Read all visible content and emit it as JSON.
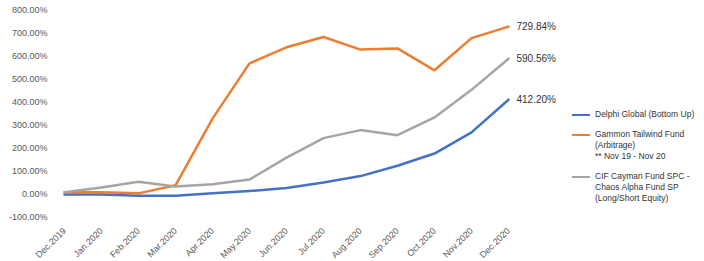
{
  "chart_data": {
    "type": "line",
    "x": [
      "Dec.2019",
      "Jan.2020",
      "Feb.2020",
      "Mar.2020",
      "Apr.2020",
      "May.2020",
      "Jun.2020",
      "Jul.2020",
      "Aug.2020",
      "Sep.2020",
      "Oct.2020",
      "Nov.2020",
      "Dec.2020"
    ],
    "series": [
      {
        "name": "Delphi Global (Bottom Up)",
        "color": "#4472c4",
        "values": [
          0,
          0,
          -5,
          -5,
          5,
          15,
          28,
          52,
          80,
          125,
          178,
          270,
          412.2
        ],
        "value_labels": [
          null,
          null,
          null,
          null,
          null,
          null,
          null,
          null,
          null,
          null,
          null,
          null,
          "412.20%"
        ]
      },
      {
        "name": "Gammon Tailwind Fund (Arbitrage)",
        "color": "#ed7d31",
        "values": [
          10,
          10,
          5,
          40,
          330,
          570,
          640,
          685,
          630,
          635,
          540,
          680,
          729.84
        ],
        "value_labels": [
          null,
          null,
          null,
          null,
          null,
          null,
          null,
          null,
          null,
          null,
          null,
          null,
          "729.84%"
        ]
      },
      {
        "name": "CIF Cayman Fund SPC - Chaos Alpha Fund SP (Long/Short Equity)",
        "color": "#a5a5a5",
        "values": [
          10,
          30,
          55,
          35,
          45,
          65,
          160,
          245,
          280,
          258,
          335,
          455,
          590.56
        ],
        "value_labels": [
          null,
          null,
          null,
          null,
          null,
          null,
          null,
          null,
          null,
          null,
          null,
          null,
          "590.56%"
        ]
      }
    ],
    "annotations": [
      {
        "series": "Gammon Tailwind Fund (Arbitrage)",
        "text": "** Nov 19 - Nov 20"
      }
    ],
    "ylim": [
      -100,
      800
    ],
    "yticks": [
      {
        "value": -100,
        "label": "-100.00%"
      },
      {
        "value": 0,
        "label": "0.00%"
      },
      {
        "value": 100,
        "label": "100.00%"
      },
      {
        "value": 200,
        "label": "200.00%"
      },
      {
        "value": 300,
        "label": "300.00%"
      },
      {
        "value": 400,
        "label": "400.00%"
      },
      {
        "value": 500,
        "label": "500.00%"
      },
      {
        "value": 600,
        "label": "600.00%"
      },
      {
        "value": 700,
        "label": "700.00%"
      },
      {
        "value": 800,
        "label": "800.00%"
      }
    ],
    "grid": false,
    "legend": "right"
  }
}
